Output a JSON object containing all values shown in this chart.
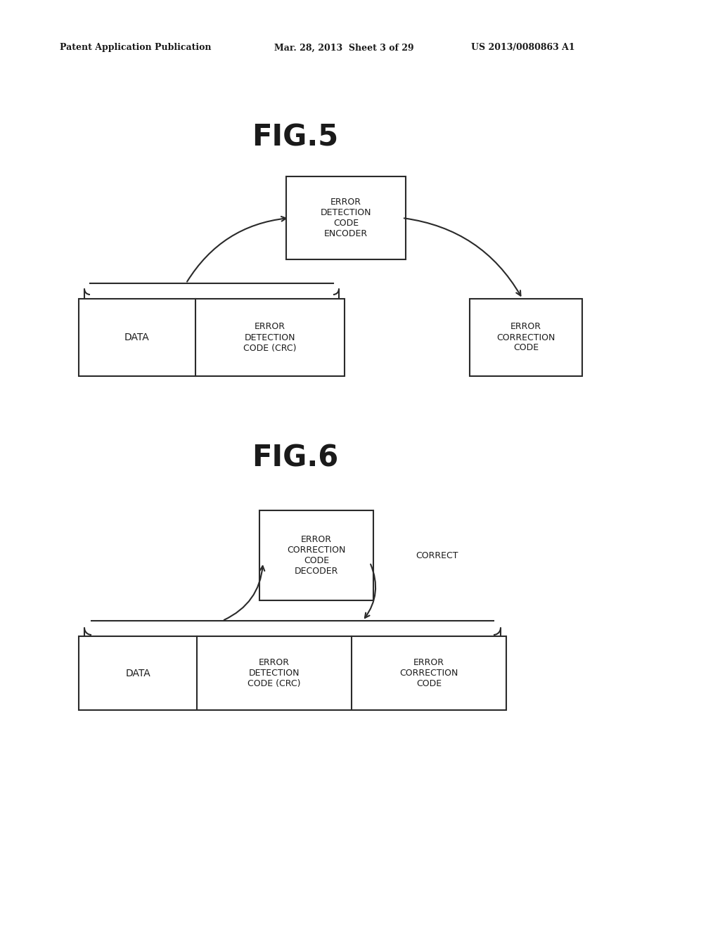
{
  "bg_color": "#ffffff",
  "header_left": "Patent Application Publication",
  "header_mid": "Mar. 28, 2013  Sheet 3 of 29",
  "header_right": "US 2013/0080863 A1",
  "fig5_title": "FIG.5",
  "fig6_title": "FIG.6",
  "fig5_encoder_label": "ERROR\nDETECTION\nCODE\nENCODER",
  "fig5_data_label": "DATA",
  "fig5_edc_label": "ERROR\nDETECTION\nCODE (CRC)",
  "fig5_ecc_label": "ERROR\nCORRECTION\nCODE",
  "fig6_decoder_label": "ERROR\nCORRECTION\nCODE\nDECODER",
  "fig6_correct_label": "CORRECT",
  "fig6_data_label": "DATA",
  "fig6_edc_label": "ERROR\nDETECTION\nCODE (CRC)",
  "fig6_ecc_label": "ERROR\nCORRECTION\nCODE",
  "line_color": "#2a2a2a",
  "text_color": "#1a1a1a"
}
